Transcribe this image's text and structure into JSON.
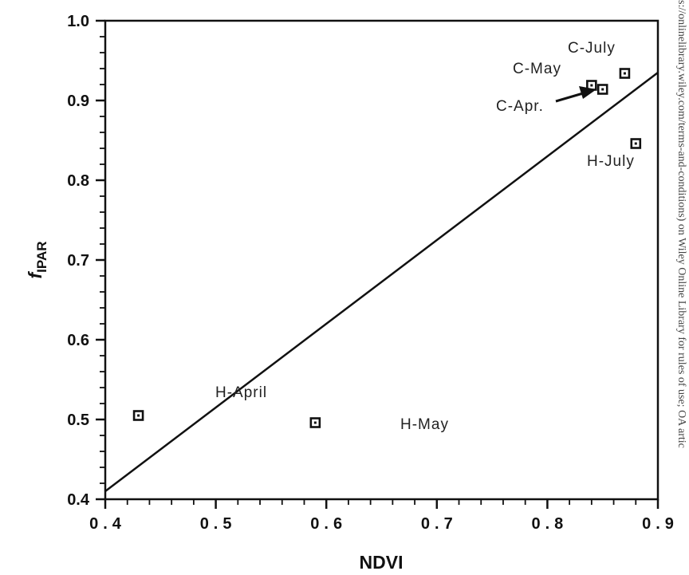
{
  "chart_data": {
    "type": "scatter",
    "xlabel": "NDVI",
    "ylabel_main": "f",
    "ylabel_sub": "IPAR",
    "xlim": [
      0.4,
      0.9
    ],
    "ylim": [
      0.4,
      1.0
    ],
    "x_ticks": [
      0.4,
      0.5,
      0.6,
      0.7,
      0.8,
      0.9
    ],
    "x_tick_labels": [
      "0.4",
      "0.5",
      "0.6",
      "0.7",
      "0.8",
      "0.9"
    ],
    "y_ticks": [
      0.4,
      0.5,
      0.6,
      0.7,
      0.8,
      0.9,
      1.0
    ],
    "y_tick_labels": [
      "0.4",
      "0.5",
      "0.6",
      "0.7",
      "0.8",
      "0.9",
      "1.0"
    ],
    "grid": false,
    "legend": "none",
    "points": [
      {
        "label": "H-April",
        "x": 0.43,
        "y": 0.505
      },
      {
        "label": "H-May",
        "x": 0.59,
        "y": 0.496
      },
      {
        "label": "C-May",
        "x": 0.84,
        "y": 0.919
      },
      {
        "label": "C-Apr.",
        "x": 0.85,
        "y": 0.914
      },
      {
        "label": "C-July",
        "x": 0.87,
        "y": 0.934
      },
      {
        "label": "H-July",
        "x": 0.88,
        "y": 0.846
      }
    ],
    "regression_line": {
      "x": [
        0.4,
        0.9
      ],
      "y": [
        0.41,
        0.935
      ]
    },
    "marker": "hollow-square",
    "colors": {
      "ink": "#111111",
      "background": "#ffffff"
    }
  },
  "side_text": "s://onlinelibrary.wiley.com/terms-and-conditions) on Wiley Online Library for rules of use; OA artic"
}
